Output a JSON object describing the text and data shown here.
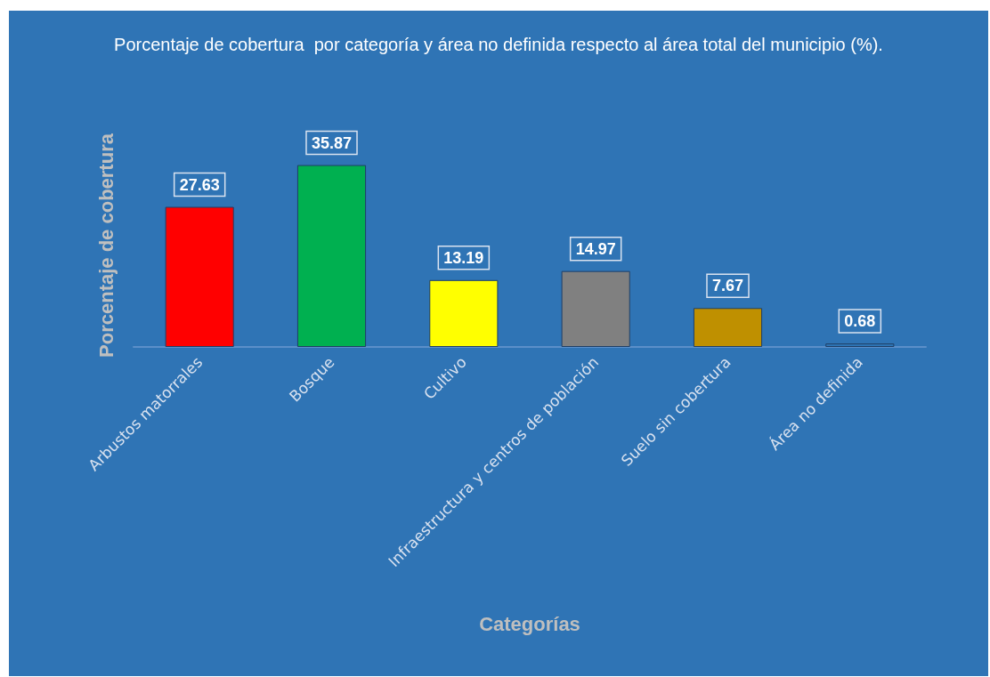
{
  "chart_data": {
    "type": "bar",
    "title": "Porcentaje de cobertura  por categoría y área no definida respecto al área total del municipio (%).",
    "xlabel": "Categorías",
    "ylabel": "Porcentaje de cobertura",
    "categories": [
      "Arbustos matorrales",
      "Bosque",
      "Cultivo",
      "Infraestructura y centros de población",
      "Suelo sin cobertura",
      "Área no definida"
    ],
    "values": [
      27.63,
      35.87,
      13.19,
      14.97,
      7.67,
      0.68
    ],
    "colors": [
      "#ff0000",
      "#00b050",
      "#ffff00",
      "#808080",
      "#bf9000",
      "#2e75b6"
    ],
    "data_labels": true
  }
}
